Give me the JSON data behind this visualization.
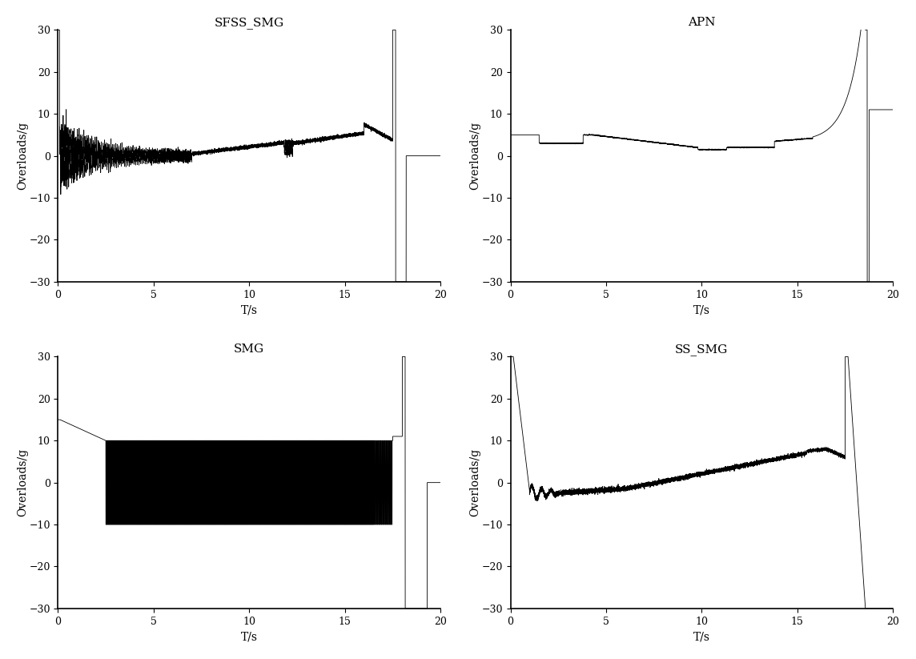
{
  "titles": [
    "SFSS_SMG",
    "APN",
    "SMG",
    "SS_SMG"
  ],
  "xlabel": "T/s",
  "ylabel": "Overloads/g",
  "xlim": [
    0,
    20
  ],
  "ylim": [
    -30,
    30
  ],
  "yticks": [
    -30,
    -20,
    -10,
    0,
    10,
    20,
    30
  ],
  "xticks": [
    0,
    5,
    10,
    15,
    20
  ],
  "line_color": "#000000",
  "background_color": "#ffffff",
  "title_fontsize": 11,
  "label_fontsize": 10,
  "tick_fontsize": 9
}
